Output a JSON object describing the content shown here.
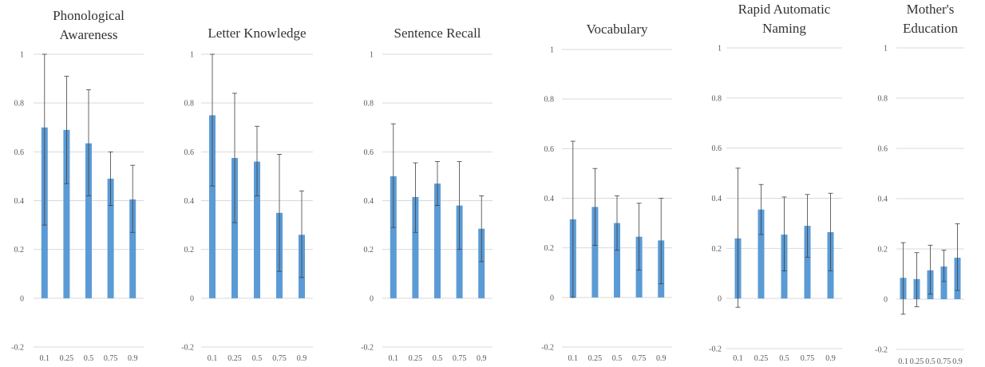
{
  "chart_data": [
    {
      "type": "bar",
      "title": [
        "Phonological",
        "Awareness"
      ],
      "categories": [
        "0.1",
        "0.25",
        "0.5",
        "0.75",
        "0.9"
      ],
      "values": [
        0.7,
        0.69,
        0.635,
        0.49,
        0.405
      ],
      "error_low": [
        0.3,
        0.47,
        0.42,
        0.38,
        0.27
      ],
      "error_high": [
        1.0,
        0.91,
        0.855,
        0.6,
        0.545
      ],
      "ylim": [
        -0.2,
        1
      ],
      "yticks": [
        "-0.2",
        "0",
        "0.2",
        "0.4",
        "0.6",
        "0.8",
        "1"
      ]
    },
    {
      "type": "bar",
      "title": [
        "Letter Knowledge"
      ],
      "categories": [
        "0.1",
        "0.25",
        "0.5",
        "0.75",
        "0.9"
      ],
      "values": [
        0.75,
        0.575,
        0.56,
        0.35,
        0.26
      ],
      "error_low": [
        0.46,
        0.31,
        0.42,
        0.11,
        0.085
      ],
      "error_high": [
        1.0,
        0.84,
        0.705,
        0.59,
        0.44
      ],
      "ylim": [
        -0.2,
        1
      ],
      "yticks": [
        "-0.2",
        "0",
        "0.2",
        "0.4",
        "0.6",
        "0.8",
        "1"
      ]
    },
    {
      "type": "bar",
      "title": [
        "Sentence Recall"
      ],
      "categories": [
        "0.1",
        "0.25",
        "0.5",
        "0.75",
        "0.9"
      ],
      "values": [
        0.5,
        0.415,
        0.47,
        0.38,
        0.285
      ],
      "error_low": [
        0.29,
        0.27,
        0.38,
        0.2,
        0.15
      ],
      "error_high": [
        0.715,
        0.555,
        0.56,
        0.56,
        0.42
      ],
      "ylim": [
        -0.2,
        1
      ],
      "yticks": [
        "-0.2",
        "0",
        "0.2",
        "0.4",
        "0.6",
        "0.8",
        "1"
      ]
    },
    {
      "type": "bar",
      "title": [
        "Vocabulary"
      ],
      "categories": [
        "0.1",
        "0.25",
        "0.5",
        "0.75",
        "0.9"
      ],
      "values": [
        0.315,
        0.365,
        0.3,
        0.245,
        0.23
      ],
      "error_low": [
        0.0,
        0.21,
        0.19,
        0.11,
        0.055
      ],
      "error_high": [
        0.63,
        0.52,
        0.41,
        0.38,
        0.4
      ],
      "ylim": [
        -0.2,
        1
      ],
      "yticks": [
        "-0.2",
        "0",
        "0.2",
        "0.4",
        "0.6",
        "0.8",
        "1"
      ]
    },
    {
      "type": "bar",
      "title": [
        "Rapid Automatic",
        "Naming"
      ],
      "categories": [
        "0.1",
        "0.25",
        "0.5",
        "0.75",
        "0.9"
      ],
      "values": [
        0.24,
        0.355,
        0.255,
        0.29,
        0.265
      ],
      "error_low": [
        -0.035,
        0.255,
        0.11,
        0.165,
        0.11
      ],
      "error_high": [
        0.52,
        0.455,
        0.405,
        0.415,
        0.42
      ],
      "ylim": [
        -0.2,
        1
      ],
      "yticks": [
        "-0.2",
        "0",
        "0.2",
        "0.4",
        "0.6",
        "0.8",
        "1"
      ]
    },
    {
      "type": "bar",
      "title": [
        "Mother's",
        "Education"
      ],
      "categories": [
        "0.1",
        "0.25",
        "0.5",
        "0.75",
        "0.9"
      ],
      "values": [
        0.085,
        0.08,
        0.115,
        0.13,
        0.165
      ],
      "error_low": [
        -0.06,
        -0.03,
        0.02,
        0.07,
        0.035
      ],
      "error_high": [
        0.225,
        0.185,
        0.215,
        0.195,
        0.3
      ],
      "ylim": [
        -0.2,
        1
      ],
      "yticks": [
        "-0.2",
        "0",
        "0.2",
        "0.4",
        "0.6",
        "0.8",
        "1"
      ]
    }
  ],
  "colors": {
    "bar": "#5B9BD5",
    "grid": "#D9D9D9",
    "error_bar": "#404040",
    "tick_text": "#595959",
    "title_text": "#333333"
  }
}
